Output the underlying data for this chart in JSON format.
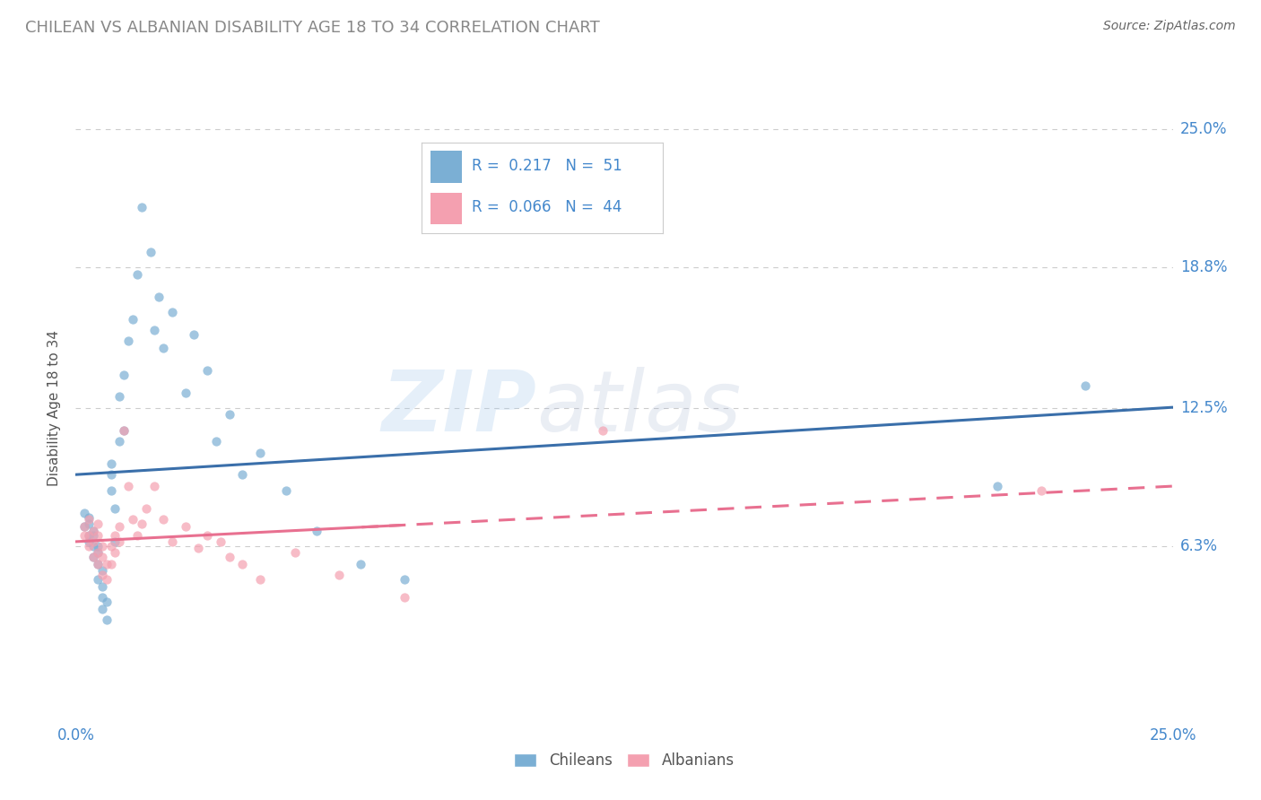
{
  "title": "CHILEAN VS ALBANIAN DISABILITY AGE 18 TO 34 CORRELATION CHART",
  "source": "Source: ZipAtlas.com",
  "ylabel": "Disability Age 18 to 34",
  "xlim": [
    0.0,
    0.25
  ],
  "ylim": [
    -0.015,
    0.265
  ],
  "ytick_labels": [
    "6.3%",
    "12.5%",
    "18.8%",
    "25.0%"
  ],
  "ytick_values": [
    0.063,
    0.125,
    0.188,
    0.25
  ],
  "xtick_labels": [
    "0.0%",
    "25.0%"
  ],
  "xtick_values": [
    0.0,
    0.25
  ],
  "chilean_color": "#7bafd4",
  "albanian_color": "#f4a0b0",
  "chilean_line_color": "#3a6faa",
  "albanian_line_color": "#e87090",
  "title_color": "#888888",
  "axis_label_color": "#555555",
  "tick_label_color": "#4488cc",
  "source_color": "#666666",
  "watermark_zip": "ZIP",
  "watermark_atlas": "atlas",
  "background_color": "#ffffff",
  "grid_color": "#cccccc",
  "chilean_x": [
    0.002,
    0.002,
    0.003,
    0.003,
    0.003,
    0.003,
    0.004,
    0.004,
    0.004,
    0.004,
    0.005,
    0.005,
    0.005,
    0.005,
    0.006,
    0.006,
    0.006,
    0.006,
    0.007,
    0.007,
    0.008,
    0.008,
    0.008,
    0.009,
    0.009,
    0.01,
    0.01,
    0.011,
    0.011,
    0.012,
    0.013,
    0.014,
    0.015,
    0.017,
    0.018,
    0.019,
    0.02,
    0.022,
    0.025,
    0.027,
    0.03,
    0.032,
    0.035,
    0.038,
    0.042,
    0.048,
    0.055,
    0.065,
    0.075,
    0.21,
    0.23
  ],
  "chilean_y": [
    0.078,
    0.072,
    0.076,
    0.073,
    0.068,
    0.065,
    0.07,
    0.068,
    0.063,
    0.058,
    0.06,
    0.063,
    0.055,
    0.048,
    0.052,
    0.045,
    0.04,
    0.035,
    0.038,
    0.03,
    0.1,
    0.095,
    0.088,
    0.08,
    0.065,
    0.11,
    0.13,
    0.14,
    0.115,
    0.155,
    0.165,
    0.185,
    0.215,
    0.195,
    0.16,
    0.175,
    0.152,
    0.168,
    0.132,
    0.158,
    0.142,
    0.11,
    0.122,
    0.095,
    0.105,
    0.088,
    0.07,
    0.055,
    0.048,
    0.09,
    0.135
  ],
  "albanian_x": [
    0.002,
    0.002,
    0.003,
    0.003,
    0.003,
    0.004,
    0.004,
    0.004,
    0.005,
    0.005,
    0.005,
    0.005,
    0.006,
    0.006,
    0.006,
    0.007,
    0.007,
    0.008,
    0.008,
    0.009,
    0.009,
    0.01,
    0.01,
    0.011,
    0.012,
    0.013,
    0.014,
    0.015,
    0.016,
    0.018,
    0.02,
    0.022,
    0.025,
    0.028,
    0.03,
    0.033,
    0.035,
    0.038,
    0.042,
    0.05,
    0.06,
    0.075,
    0.12,
    0.22
  ],
  "albanian_y": [
    0.072,
    0.068,
    0.075,
    0.068,
    0.063,
    0.07,
    0.065,
    0.058,
    0.073,
    0.068,
    0.06,
    0.055,
    0.063,
    0.058,
    0.05,
    0.055,
    0.048,
    0.063,
    0.055,
    0.068,
    0.06,
    0.072,
    0.065,
    0.115,
    0.09,
    0.075,
    0.068,
    0.073,
    0.08,
    0.09,
    0.075,
    0.065,
    0.072,
    0.062,
    0.068,
    0.065,
    0.058,
    0.055,
    0.048,
    0.06,
    0.05,
    0.04,
    0.115,
    0.088
  ],
  "legend_r1": "R =  0.217   N =  51",
  "legend_r2": "R =  0.066   N =  44"
}
